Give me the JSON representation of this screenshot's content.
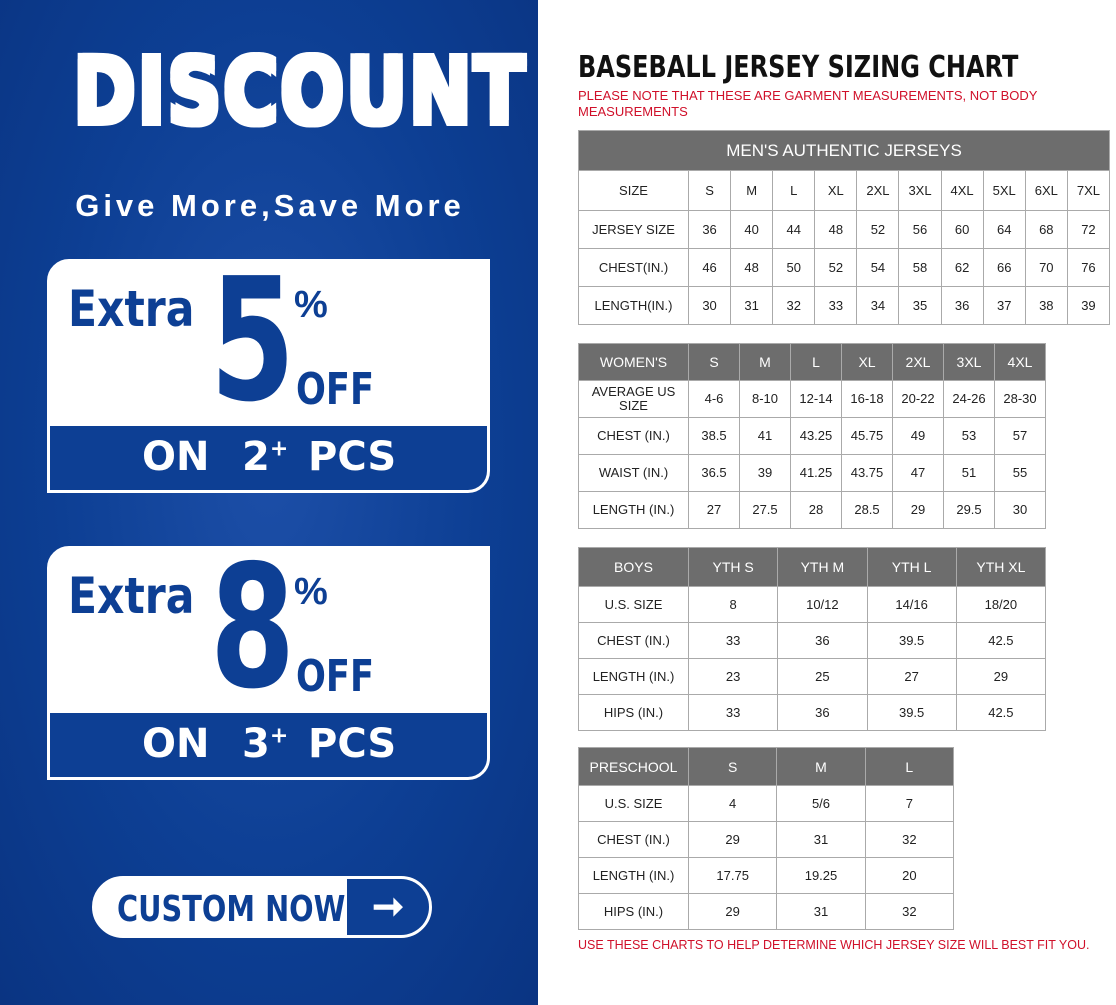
{
  "promo": {
    "headline": "DISCOUNT",
    "tagline": "Give More,Save More",
    "offers": [
      {
        "extra": "Extra",
        "value": "5",
        "percent": "%",
        "off": "OFF",
        "on": "ON",
        "qty": "2",
        "plus": "+",
        "pcs": "PCS"
      },
      {
        "extra": "Extra",
        "value": "8",
        "percent": "%",
        "off": "OFF",
        "on": "ON",
        "qty": "3",
        "plus": "+",
        "pcs": "PCS"
      }
    ],
    "cta": "CUSTOM NOW",
    "cta_icon": "arrow-right-icon",
    "brand_color": "#0d3f94"
  },
  "chart": {
    "title": "BASEBALL JERSEY SIZING CHART",
    "note": "PLEASE NOTE THAT THESE ARE GARMENT MEASUREMENTS, NOT BODY MEASUREMENTS",
    "footer": "USE THESE CHARTS TO HELP DETERMINE WHICH JERSEY SIZE WILL BEST FIT YOU.",
    "accent_color": "#d0102a",
    "header_color": "#6d6d6d"
  },
  "chart_data": [
    {
      "type": "table",
      "title": "MEN'S AUTHENTIC JERSEYS",
      "columns": [
        "SIZE",
        "S",
        "M",
        "L",
        "XL",
        "2XL",
        "3XL",
        "4XL",
        "5XL",
        "6XL",
        "7XL"
      ],
      "rows": [
        [
          "JERSEY SIZE",
          "36",
          "40",
          "44",
          "48",
          "52",
          "56",
          "60",
          "64",
          "68",
          "72"
        ],
        [
          "CHEST(IN.)",
          "46",
          "48",
          "50",
          "52",
          "54",
          "58",
          "62",
          "66",
          "70",
          "76"
        ],
        [
          "LENGTH(IN.)",
          "30",
          "31",
          "32",
          "33",
          "34",
          "35",
          "36",
          "37",
          "38",
          "39"
        ]
      ]
    },
    {
      "type": "table",
      "columns": [
        "WOMEN'S",
        "S",
        "M",
        "L",
        "XL",
        "2XL",
        "3XL",
        "4XL"
      ],
      "rows": [
        [
          "AVERAGE US SIZE",
          "4-6",
          "8-10",
          "12-14",
          "16-18",
          "20-22",
          "24-26",
          "28-30"
        ],
        [
          "CHEST (IN.)",
          "38.5",
          "41",
          "43.25",
          "45.75",
          "49",
          "53",
          "57"
        ],
        [
          "WAIST (IN.)",
          "36.5",
          "39",
          "41.25",
          "43.75",
          "47",
          "51",
          "55"
        ],
        [
          "LENGTH (IN.)",
          "27",
          "27.5",
          "28",
          "28.5",
          "29",
          "29.5",
          "30"
        ]
      ]
    },
    {
      "type": "table",
      "columns": [
        "BOYS",
        "YTH S",
        "YTH M",
        "YTH L",
        "YTH XL"
      ],
      "rows": [
        [
          "U.S. SIZE",
          "8",
          "10/12",
          "14/16",
          "18/20"
        ],
        [
          "CHEST (IN.)",
          "33",
          "36",
          "39.5",
          "42.5"
        ],
        [
          "LENGTH (IN.)",
          "23",
          "25",
          "27",
          "29"
        ],
        [
          "HIPS (IN.)",
          "33",
          "36",
          "39.5",
          "42.5"
        ]
      ]
    },
    {
      "type": "table",
      "columns": [
        "PRESCHOOL",
        "S",
        "M",
        "L"
      ],
      "rows": [
        [
          "U.S. SIZE",
          "4",
          "5/6",
          "7"
        ],
        [
          "CHEST (IN.)",
          "29",
          "31",
          "32"
        ],
        [
          "LENGTH (IN.)",
          "17.75",
          "19.25",
          "20"
        ],
        [
          "HIPS (IN.)",
          "29",
          "31",
          "32"
        ]
      ]
    }
  ]
}
